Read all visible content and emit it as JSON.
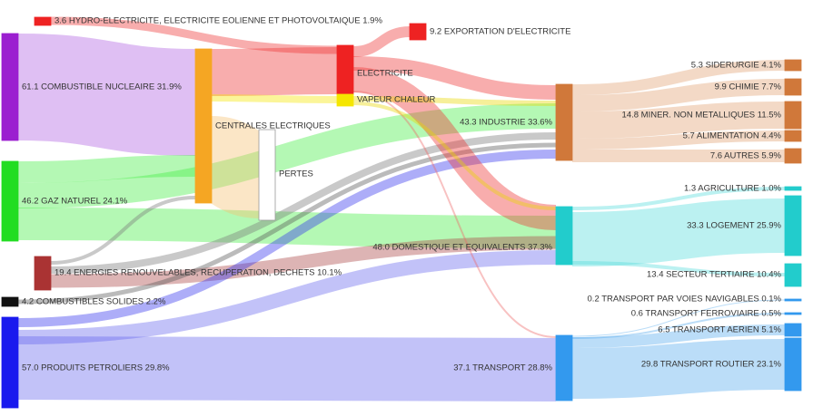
{
  "nodes": [
    {
      "label": "3.6 HYDRO-ELECTRICITE, ELECTRICITE EOLIENNE ET PHOTOVOLTAIQUE 1.9%"
    },
    {
      "label": "61.1 COMBUSTIBLE NUCLEAIRE 31.9%"
    },
    {
      "label": "46.2 GAZ NATUREL 24.1%"
    },
    {
      "label": "19.4 ENERGIES RENOUVELABLES, RECUPERATION, DECHETS 10.1%"
    },
    {
      "label": "4.2 COMBUSTIBLES SOLIDES 2.2%"
    },
    {
      "label": "57.0 PRODUITS PETROLIERS 29.8%"
    },
    {
      "label": "CENTRALES ELECTRIQUES"
    },
    {
      "label": "PERTES"
    },
    {
      "label": "ELECTRICITE"
    },
    {
      "label": "VAPEUR CHALEUR"
    },
    {
      "label": "9.2 EXPORTATION D'ELECTRICITE"
    },
    {
      "label": "43.3 INDUSTRIE 33.6%"
    },
    {
      "label": "48.0 DOMESTIQUE ET EQUIVALENTS 37.3%"
    },
    {
      "label": "37.1 TRANSPORT 28.8%"
    },
    {
      "label": "5.3 SIDERURGIE 4.1%"
    },
    {
      "label": "9.9 CHIMIE 7.7%"
    },
    {
      "label": "14.8 MINER. NON METALLIQUES 11.5%"
    },
    {
      "label": "5.7 ALIMENTATION 4.4%"
    },
    {
      "label": "7.6 AUTRES 5.9%"
    },
    {
      "label": "1.3 AGRICULTURE 1.0%"
    },
    {
      "label": "33.3 LOGEMENT 25.9%"
    },
    {
      "label": "13.4 SECTEUR TERTIAIRE 10.4%"
    },
    {
      "label": "0.2 TRANSPORT PAR VOIES NAVIGABLES 0.1%"
    },
    {
      "label": "0.6 TRANSPORT FERROVIAIRE 0.5%"
    },
    {
      "label": "6.5 TRANSPORT AERIEN 5.1%"
    },
    {
      "label": "29.8 TRANSPORT ROUTIER 23.1%"
    }
  ]
}
